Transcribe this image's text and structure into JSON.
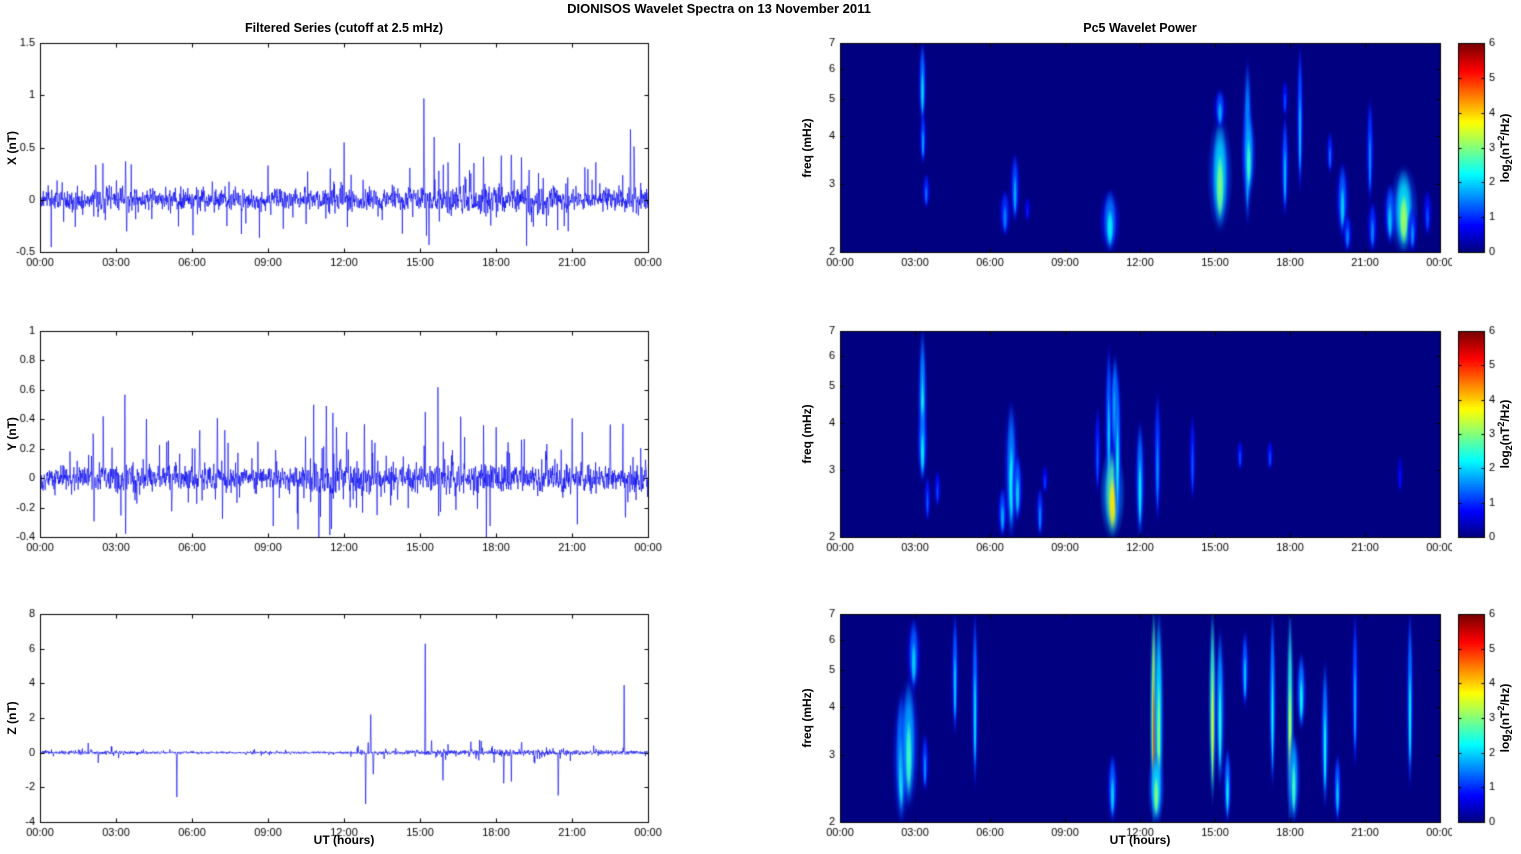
{
  "chart_data": {
    "type": [
      "line",
      "heatmap"
    ],
    "figure_title": "DIONISOS Wavelet Spectra on 13 November  2011",
    "line_color": "#0000EE",
    "left_column": {
      "title": "Filtered Series (cutoff at 2.5 mHz)",
      "xlabel": "UT (hours)",
      "x_tick_labels": [
        "00:00",
        "03:00",
        "06:00",
        "09:00",
        "12:00",
        "15:00",
        "18:00",
        "21:00",
        "00:00"
      ],
      "x_tick_hours": [
        0,
        3,
        6,
        9,
        12,
        15,
        18,
        21,
        24
      ],
      "x_range_hours": [
        0,
        24
      ],
      "panels": [
        {
          "component": "X",
          "ylabel": "X (nT)",
          "ylim": [
            -0.5,
            1.5
          ],
          "ytick_labels": [
            "-0.5",
            "0",
            "0.5",
            "1",
            "1.5"
          ],
          "ytick_values": [
            -0.5,
            0,
            0.5,
            1,
            1.5
          ],
          "seed": 11,
          "noise_envelope_hourly": [
            0.13,
            0.13,
            0.14,
            0.14,
            0.12,
            0.12,
            0.12,
            0.12,
            0.12,
            0.12,
            0.12,
            0.12,
            0.13,
            0.12,
            0.12,
            0.15,
            0.18,
            0.18,
            0.18,
            0.18,
            0.17,
            0.15,
            0.14,
            0.15,
            0.18
          ],
          "spikes": [
            [
              2.2,
              0.35
            ],
            [
              2.3,
              -0.3
            ],
            [
              3.38,
              0.6
            ],
            [
              3.42,
              -0.33
            ],
            [
              6.8,
              0.3
            ],
            [
              9.0,
              0.3
            ],
            [
              10.5,
              -0.3
            ],
            [
              12.0,
              0.32
            ],
            [
              15.15,
              1.07
            ],
            [
              15.35,
              -0.37
            ],
            [
              15.55,
              0.72
            ],
            [
              16.1,
              0.45
            ],
            [
              16.55,
              0.5
            ],
            [
              17.0,
              0.42
            ],
            [
              17.5,
              0.55
            ],
            [
              18.2,
              0.5
            ],
            [
              18.6,
              0.45
            ],
            [
              19.0,
              0.55
            ],
            [
              19.3,
              0.45
            ],
            [
              21.5,
              0.42
            ],
            [
              23.3,
              0.75
            ],
            [
              23.45,
              0.5
            ]
          ]
        },
        {
          "component": "Y",
          "ylabel": "Y (nT)",
          "ylim": [
            -0.4,
            1.0
          ],
          "ytick_labels": [
            "-0.4",
            "-0.2",
            "0",
            "0.2",
            "0.4",
            "0.6",
            "0.8",
            "1"
          ],
          "ytick_values": [
            -0.4,
            -0.2,
            0,
            0.2,
            0.4,
            0.6,
            0.8,
            1
          ],
          "seed": 22,
          "noise_envelope_hourly": [
            0.1,
            0.1,
            0.1,
            0.12,
            0.11,
            0.1,
            0.1,
            0.11,
            0.1,
            0.1,
            0.1,
            0.16,
            0.16,
            0.12,
            0.1,
            0.12,
            0.13,
            0.13,
            0.13,
            0.12,
            0.12,
            0.12,
            0.12,
            0.12,
            0.12
          ],
          "spikes": [
            [
              2.1,
              0.35
            ],
            [
              2.5,
              0.3
            ],
            [
              3.35,
              0.69
            ],
            [
              3.38,
              -0.4
            ],
            [
              4.2,
              0.45
            ],
            [
              5.0,
              0.33
            ],
            [
              5.2,
              -0.3
            ],
            [
              6.3,
              0.33
            ],
            [
              7.0,
              0.45
            ],
            [
              7.2,
              -0.35
            ],
            [
              8.6,
              0.33
            ],
            [
              9.3,
              0.3
            ],
            [
              10.8,
              0.44
            ],
            [
              11.0,
              -0.35
            ],
            [
              11.3,
              0.47
            ],
            [
              11.5,
              -0.35
            ],
            [
              11.7,
              0.45
            ],
            [
              12.1,
              0.35
            ],
            [
              12.8,
              0.42
            ],
            [
              13.3,
              -0.3
            ],
            [
              15.2,
              0.55
            ],
            [
              15.7,
              0.7
            ],
            [
              15.8,
              -0.32
            ],
            [
              16.6,
              0.52
            ],
            [
              17.5,
              0.42
            ],
            [
              18.0,
              0.4
            ],
            [
              19.0,
              0.35
            ],
            [
              20.0,
              0.33
            ],
            [
              21.0,
              0.38
            ],
            [
              21.4,
              0.35
            ],
            [
              22.5,
              0.5
            ],
            [
              23.0,
              0.4
            ],
            [
              23.1,
              -0.35
            ]
          ]
        },
        {
          "component": "Z",
          "ylabel": "Z (nT)",
          "ylim": [
            -4,
            8
          ],
          "ytick_labels": [
            "-4",
            "-2",
            "0",
            "2",
            "4",
            "6",
            "8"
          ],
          "ytick_values": [
            -4,
            -2,
            0,
            2,
            4,
            6,
            8
          ],
          "seed": 33,
          "noise_envelope_hourly": [
            0.12,
            0.12,
            0.15,
            0.15,
            0.1,
            0.08,
            0.08,
            0.08,
            0.08,
            0.08,
            0.08,
            0.08,
            0.1,
            0.15,
            0.1,
            0.2,
            0.22,
            0.22,
            0.25,
            0.25,
            0.22,
            0.18,
            0.15,
            0.15,
            0.15
          ],
          "spikes": [
            [
              1.9,
              0.5
            ],
            [
              2.3,
              -0.6
            ],
            [
              5.4,
              -2.5
            ],
            [
              12.85,
              -3.05
            ],
            [
              12.95,
              0.6
            ],
            [
              13.05,
              2.45
            ],
            [
              13.15,
              -1.6
            ],
            [
              15.2,
              7.3
            ],
            [
              15.45,
              0.8
            ],
            [
              15.9,
              -1.95
            ],
            [
              16.1,
              0.6
            ],
            [
              17.0,
              0.7
            ],
            [
              18.3,
              -2.25
            ],
            [
              18.6,
              -1.75
            ],
            [
              19.0,
              0.8
            ],
            [
              19.5,
              -0.7
            ],
            [
              20.45,
              -2.85
            ],
            [
              23.05,
              4.1
            ]
          ]
        }
      ]
    },
    "right_column": {
      "title": "Pc5 Wavelet Power",
      "xlabel": "UT (hours)",
      "ylabel": "freq (mHz)",
      "x_tick_labels": [
        "00:00",
        "03:00",
        "06:00",
        "09:00",
        "12:00",
        "15:00",
        "18:00",
        "21:00",
        "00:00"
      ],
      "x_tick_hours": [
        0,
        3,
        6,
        9,
        12,
        15,
        18,
        21,
        24
      ],
      "freq_ticks": [
        2,
        3,
        4,
        5,
        6,
        7
      ],
      "freq_range_mHz": [
        2,
        7
      ],
      "freq_scale": "log",
      "colorbar": {
        "ticks": [
          "0",
          "1",
          "2",
          "3",
          "4",
          "5",
          "6"
        ],
        "tick_values": [
          0,
          1,
          2,
          3,
          4,
          5,
          6
        ],
        "range": [
          0,
          6
        ],
        "colormap": "jet",
        "label_parts": {
          "prefix": "log",
          "sub": "2",
          "mid": "(nT",
          "sup": "2",
          "suffix": "/Hz)"
        }
      },
      "panels": [
        {
          "component": "X",
          "events": [
            [
              3.3,
              0.1,
              4.3,
              7.0,
              2.1
            ],
            [
              3.32,
              0.09,
              3.4,
              4.6,
              1.7
            ],
            [
              3.45,
              0.1,
              2.6,
              3.2,
              1.4
            ],
            [
              6.6,
              0.14,
              2.2,
              2.9,
              1.5
            ],
            [
              7.0,
              0.12,
              2.4,
              3.6,
              1.8
            ],
            [
              7.5,
              0.07,
              2.4,
              2.8,
              0.9
            ],
            [
              10.8,
              0.22,
              2.0,
              2.9,
              2.2
            ],
            [
              15.2,
              0.26,
              2.3,
              4.4,
              3.0
            ],
            [
              15.2,
              0.15,
              4.2,
              5.3,
              1.8
            ],
            [
              16.3,
              0.12,
              2.4,
              6.2,
              2.4
            ],
            [
              16.35,
              0.16,
              2.8,
              4.6,
              2.6
            ],
            [
              17.8,
              0.1,
              2.5,
              4.5,
              1.9
            ],
            [
              17.8,
              0.07,
              4.5,
              5.6,
              1.2
            ],
            [
              18.4,
              0.08,
              2.9,
              6.8,
              1.9
            ],
            [
              19.6,
              0.09,
              3.2,
              4.1,
              1.4
            ],
            [
              20.1,
              0.15,
              2.2,
              3.4,
              2.0
            ],
            [
              20.3,
              0.12,
              2.0,
              2.5,
              1.5
            ],
            [
              21.2,
              0.1,
              2.7,
              5.0,
              1.6
            ],
            [
              21.3,
              0.13,
              2.0,
              2.7,
              1.5
            ],
            [
              22.0,
              0.15,
              2.1,
              3.0,
              2.0
            ],
            [
              22.55,
              0.3,
              2.0,
              3.3,
              3.2
            ],
            [
              22.9,
              0.12,
              2.0,
              2.6,
              1.6
            ],
            [
              23.5,
              0.12,
              2.2,
              2.9,
              1.2
            ]
          ]
        },
        {
          "component": "Y",
          "events": [
            [
              3.3,
              0.11,
              3.0,
              7.0,
              2.4
            ],
            [
              3.3,
              0.12,
              2.8,
              4.4,
              2.2
            ],
            [
              3.5,
              0.08,
              2.2,
              2.9,
              1.3
            ],
            [
              3.9,
              0.07,
              2.4,
              3.0,
              1.2
            ],
            [
              6.5,
              0.12,
              2.0,
              2.7,
              1.8
            ],
            [
              6.85,
              0.16,
              2.0,
              4.5,
              2.3
            ],
            [
              7.1,
              0.13,
              2.2,
              3.3,
              2.0
            ],
            [
              8.0,
              0.1,
              2.0,
              2.7,
              1.6
            ],
            [
              8.2,
              0.07,
              2.6,
              3.1,
              1.1
            ],
            [
              10.3,
              0.07,
              2.6,
              4.4,
              1.3
            ],
            [
              10.75,
              0.1,
              2.6,
              6.3,
              2.0
            ],
            [
              10.9,
              0.26,
              2.0,
              3.4,
              3.9
            ],
            [
              11.0,
              0.12,
              3.2,
              6.0,
              2.4
            ],
            [
              11.1,
              0.1,
              2.2,
              5.4,
              2.2
            ],
            [
              12.0,
              0.12,
              2.0,
              4.0,
              2.2
            ],
            [
              12.7,
              0.1,
              2.2,
              4.8,
              1.6
            ],
            [
              14.1,
              0.07,
              2.5,
              4.2,
              1.3
            ],
            [
              16.0,
              0.05,
              3.0,
              3.6,
              1.2
            ],
            [
              17.2,
              0.05,
              3.0,
              3.6,
              1.2
            ],
            [
              22.4,
              0.09,
              2.6,
              3.3,
              0.8
            ]
          ]
        },
        {
          "component": "Z",
          "events": [
            [
              2.45,
              0.18,
              2.0,
              4.3,
              2.4
            ],
            [
              2.75,
              0.22,
              2.2,
              4.7,
              2.6
            ],
            [
              2.95,
              0.16,
              4.4,
              6.8,
              2.0
            ],
            [
              3.4,
              0.1,
              2.4,
              3.4,
              1.6
            ],
            [
              4.6,
              0.08,
              3.4,
              7.0,
              2.0
            ],
            [
              5.4,
              0.07,
              2.5,
              7.0,
              2.1
            ],
            [
              10.9,
              0.13,
              2.0,
              3.0,
              2.0
            ],
            [
              12.55,
              0.07,
              2.0,
              7.0,
              4.8
            ],
            [
              12.75,
              0.12,
              2.0,
              7.0,
              3.1
            ],
            [
              12.65,
              0.18,
              2.0,
              3.0,
              3.0
            ],
            [
              14.9,
              0.06,
              2.3,
              7.0,
              3.8
            ],
            [
              15.2,
              0.12,
              2.5,
              6.3,
              2.5
            ],
            [
              15.5,
              0.1,
              2.0,
              3.1,
              2.2
            ],
            [
              16.2,
              0.1,
              4.0,
              6.3,
              2.0
            ],
            [
              17.3,
              0.08,
              2.5,
              7.0,
              2.3
            ],
            [
              18.0,
              0.08,
              2.0,
              7.0,
              3.6
            ],
            [
              18.15,
              0.15,
              2.0,
              3.4,
              2.6
            ],
            [
              18.45,
              0.12,
              3.5,
              5.5,
              2.3
            ],
            [
              19.4,
              0.1,
              2.2,
              5.2,
              2.3
            ],
            [
              19.9,
              0.1,
              2.0,
              3.0,
              2.0
            ],
            [
              20.6,
              0.07,
              2.8,
              7.0,
              1.8
            ],
            [
              22.8,
              0.08,
              2.5,
              7.0,
              2.2
            ]
          ]
        }
      ]
    }
  }
}
